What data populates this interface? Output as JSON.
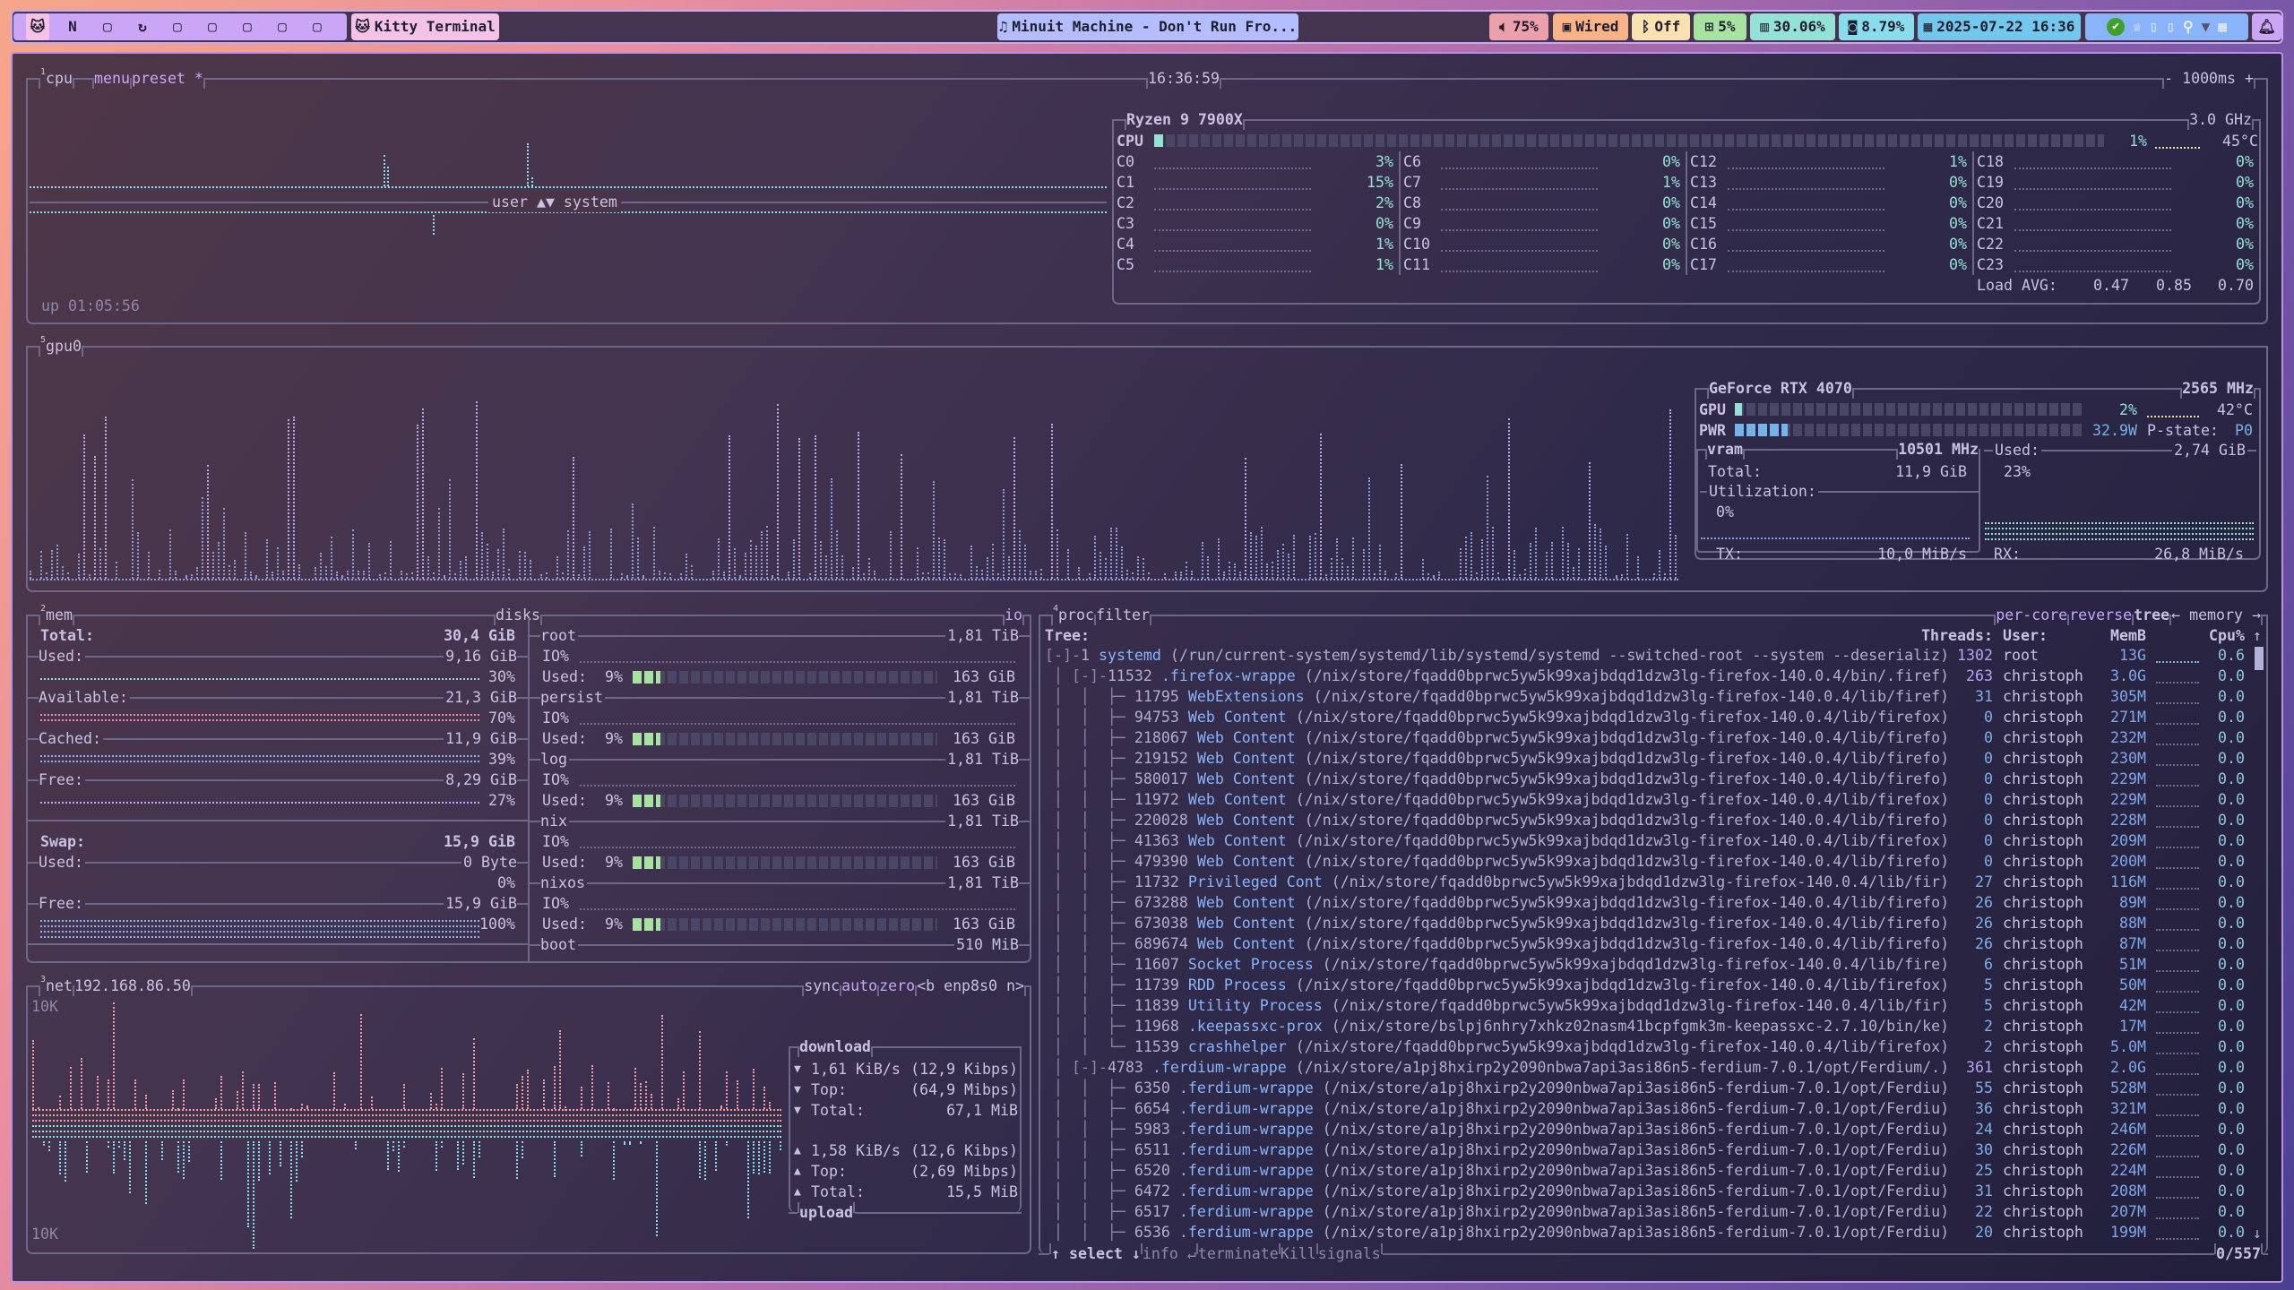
{
  "topbar": {
    "workspaces": [
      "cat-icon",
      "nixos-n-icon",
      "square-icon",
      "firefox-icon",
      "square-icon",
      "square-icon",
      "square-icon",
      "square-icon",
      "square-icon"
    ],
    "window_title": "Kitty Terminal",
    "media": "Minuit Machine - Don't Run Fro...",
    "volume": "75%",
    "network": "Wired",
    "bluetooth": "Off",
    "cpu": "5%",
    "memory": "30.06%",
    "disk": "8.79%",
    "datetime": "2025-07-22 16:36",
    "colors": {
      "workspaces": "#cba6f7",
      "window": "#f5c2e7",
      "media": "#b4befe",
      "volume": "#eba0ac",
      "network": "#fab387",
      "bluetooth": "#f9e2af",
      "cpu": "#a6e3a1",
      "memory": "#94e2d5",
      "disk": "#89dceb",
      "datetime": "#74c7ec",
      "tray": "#89b4fa",
      "bell": "#cba6f7"
    }
  },
  "cpu": {
    "num": "1",
    "title": "cpu",
    "menu": "menu",
    "preset": "preset *",
    "clock": "16:36:59",
    "interval": "- 1000ms +",
    "graph_label": "user ▲▼ system",
    "uptime": "up 01:05:56",
    "model": "Ryzen 9 7900X",
    "freq": "3.0 GHz",
    "total_label": "CPU",
    "total_pct": 1,
    "total_text": "1%",
    "temp": "45°C",
    "cores": [
      {
        "l": "C0",
        "v": "3%"
      },
      {
        "l": "C1",
        "v": "15%"
      },
      {
        "l": "C2",
        "v": "2%"
      },
      {
        "l": "C3",
        "v": "0%"
      },
      {
        "l": "C4",
        "v": "1%"
      },
      {
        "l": "C5",
        "v": "1%"
      },
      {
        "l": "C6",
        "v": "0%"
      },
      {
        "l": "C7",
        "v": "1%"
      },
      {
        "l": "C8",
        "v": "0%"
      },
      {
        "l": "C9",
        "v": "0%"
      },
      {
        "l": "C10",
        "v": "0%"
      },
      {
        "l": "C11",
        "v": "0%"
      },
      {
        "l": "C12",
        "v": "1%"
      },
      {
        "l": "C13",
        "v": "0%"
      },
      {
        "l": "C14",
        "v": "0%"
      },
      {
        "l": "C15",
        "v": "0%"
      },
      {
        "l": "C16",
        "v": "0%"
      },
      {
        "l": "C17",
        "v": "0%"
      },
      {
        "l": "C18",
        "v": "0%"
      },
      {
        "l": "C19",
        "v": "0%"
      },
      {
        "l": "C20",
        "v": "0%"
      },
      {
        "l": "C21",
        "v": "0%"
      },
      {
        "l": "C22",
        "v": "0%"
      },
      {
        "l": "C23",
        "v": "0%"
      }
    ],
    "load_label": "Load AVG:",
    "load": [
      "0.47",
      "0.85",
      "0.70"
    ]
  },
  "gpu": {
    "num": "5",
    "title": "gpu0",
    "model": "GeForce RTX 4070",
    "freq": "2565 MHz",
    "gpu_label": "GPU",
    "gpu_pct": 2,
    "gpu_text": "2%",
    "temp": "42°C",
    "pwr_label": "PWR",
    "pwr_pct": 15,
    "pwr_text": "32.9W",
    "pstate_label": "P-state:",
    "pstate": "P0",
    "vram_label": "vram",
    "vram_freq": "10501 MHz",
    "total_label": "Total:",
    "total": "11,9 GiB",
    "util_label": "Utilization:",
    "util": "0%",
    "used_label": "Used:",
    "used": "2,74 GiB",
    "used_pct": "23%",
    "tx_label": "TX:",
    "tx": "10,0 MiB/s",
    "rx_label": "RX:",
    "rx": "26,8 MiB/s"
  },
  "mem": {
    "num": "2",
    "title": "mem",
    "total_label": "Total:",
    "total": "30,4 GiB",
    "rows": [
      {
        "label": "Used:",
        "value": "9,16 GiB",
        "pct": "30%",
        "color": "#94e2d5"
      },
      {
        "label": "Available:",
        "value": "21,3 GiB",
        "pct": "70%",
        "color": "#f38ba8"
      },
      {
        "label": "Cached:",
        "value": "11,9 GiB",
        "pct": "39%",
        "color": "#89b4fa"
      },
      {
        "label": "Free:",
        "value": "8,29 GiB",
        "pct": "27%",
        "color": "#cba6f7"
      }
    ],
    "swap_label": "Swap:",
    "swap": "15,9 GiB",
    "swap_rows": [
      {
        "label": "Used:",
        "value": "0 Byte",
        "pct": "0%",
        "color": "#94e2d5"
      },
      {
        "label": "Free:",
        "value": "15,9 GiB",
        "pct": "100%",
        "color": "#89b4fa"
      }
    ]
  },
  "disks": {
    "title": "disks",
    "io": "io",
    "items": [
      {
        "name": "root",
        "size": "1,81 TiB",
        "io": "IO%",
        "used_label": "Used:",
        "pct": 9,
        "pct_text": "9%",
        "used": "163 GiB"
      },
      {
        "name": "persist",
        "size": "1,81 TiB",
        "io": "IO%",
        "used_label": "Used:",
        "pct": 9,
        "pct_text": "9%",
        "used": "163 GiB"
      },
      {
        "name": "log",
        "size": "1,81 TiB",
        "io": "IO%",
        "used_label": "Used:",
        "pct": 9,
        "pct_text": "9%",
        "used": "163 GiB"
      },
      {
        "name": "nix",
        "size": "1,81 TiB",
        "io": "IO%",
        "used_label": "Used:",
        "pct": 9,
        "pct_text": "9%",
        "used": "163 GiB"
      },
      {
        "name": "nixos",
        "size": "1,81 TiB",
        "io": "IO%",
        "used_label": "Used:",
        "pct": 9,
        "pct_text": "9%",
        "used": "163 GiB"
      }
    ],
    "boot": {
      "name": "boot",
      "size": "510 MiB"
    },
    "bar_color": "#a6e3a1"
  },
  "net": {
    "num": "3",
    "title": "net",
    "ip": "192.168.86.50",
    "sync": "sync",
    "auto": "auto",
    "zero": "zero",
    "iface": "<b enp8s0 n>",
    "scale_top": "10K",
    "scale_bottom": "10K",
    "download_title": "download",
    "upload_title": "upload",
    "download": [
      {
        "arrow": "▼",
        "label": "1,61 KiB/s",
        "value": "(12,9 Kibps)"
      },
      {
        "arrow": "▼",
        "label": "Top:",
        "value": "(64,9 Mibps)"
      },
      {
        "arrow": "▼",
        "label": "Total:",
        "value": "67,1 MiB"
      }
    ],
    "upload": [
      {
        "arrow": "▲",
        "label": "1,58 KiB/s",
        "value": "(12,6 Kibps)"
      },
      {
        "arrow": "▲",
        "label": "Top:",
        "value": "(2,69 Mibps)"
      },
      {
        "arrow": "▲",
        "label": "Total:",
        "value": "15,5 MiB"
      }
    ]
  },
  "proc": {
    "num": "4",
    "title": "proc",
    "filter": "filter",
    "per_core": "per-core",
    "reverse": "reverse",
    "tree": "tree",
    "sort": "← memory →",
    "headers": {
      "tree": "Tree:",
      "threads": "Threads:",
      "user": "User:",
      "mem": "MemB",
      "cpu": "Cpu%",
      "sort_dir": "↑"
    },
    "rows": [
      {
        "pre": "[-]-",
        "pid": "1",
        "name": "systemd",
        "args": "(/run/current-system/systemd/lib/systemd/systemd --switched-root --system --deserializ)",
        "thr": "1302",
        "user": "root",
        "mem": "13G",
        "cpu": "0.6"
      },
      {
        "pre": " │ [-]-",
        "pid": "11532",
        "name": ".firefox-wrappe",
        "args": "(/nix/store/fqadd0bprwc5yw5k99xajbdqd1dzw3lg-firefox-140.0.4/bin/.firef)",
        "thr": "263",
        "user": "christoph",
        "mem": "3.0G",
        "cpu": "0.0"
      },
      {
        "pre": " │  │  ├─ ",
        "pid": "11795",
        "name": "WebExtensions",
        "args": "(/nix/store/fqadd0bprwc5yw5k99xajbdqd1dzw3lg-firefox-140.0.4/lib/firef)",
        "thr": "31",
        "user": "christoph",
        "mem": "305M",
        "cpu": "0.0"
      },
      {
        "pre": " │  │  ├─ ",
        "pid": "94753",
        "name": "Web Content",
        "args": "(/nix/store/fqadd0bprwc5yw5k99xajbdqd1dzw3lg-firefox-140.0.4/lib/firefox)",
        "thr": "0",
        "user": "christoph",
        "mem": "271M",
        "cpu": "0.0"
      },
      {
        "pre": " │  │  ├─ ",
        "pid": "218067",
        "name": "Web Content",
        "args": "(/nix/store/fqadd0bprwc5yw5k99xajbdqd1dzw3lg-firefox-140.0.4/lib/firefo)",
        "thr": "0",
        "user": "christoph",
        "mem": "232M",
        "cpu": "0.0"
      },
      {
        "pre": " │  │  ├─ ",
        "pid": "219152",
        "name": "Web Content",
        "args": "(/nix/store/fqadd0bprwc5yw5k99xajbdqd1dzw3lg-firefox-140.0.4/lib/firefo)",
        "thr": "0",
        "user": "christoph",
        "mem": "230M",
        "cpu": "0.0"
      },
      {
        "pre": " │  │  ├─ ",
        "pid": "580017",
        "name": "Web Content",
        "args": "(/nix/store/fqadd0bprwc5yw5k99xajbdqd1dzw3lg-firefox-140.0.4/lib/firefo)",
        "thr": "0",
        "user": "christoph",
        "mem": "229M",
        "cpu": "0.0"
      },
      {
        "pre": " │  │  ├─ ",
        "pid": "11972",
        "name": "Web Content",
        "args": "(/nix/store/fqadd0bprwc5yw5k99xajbdqd1dzw3lg-firefox-140.0.4/lib/firefox)",
        "thr": "0",
        "user": "christoph",
        "mem": "229M",
        "cpu": "0.0"
      },
      {
        "pre": " │  │  ├─ ",
        "pid": "220028",
        "name": "Web Content",
        "args": "(/nix/store/fqadd0bprwc5yw5k99xajbdqd1dzw3lg-firefox-140.0.4/lib/firefo)",
        "thr": "0",
        "user": "christoph",
        "mem": "228M",
        "cpu": "0.0"
      },
      {
        "pre": " │  │  ├─ ",
        "pid": "41363",
        "name": "Web Content",
        "args": "(/nix/store/fqadd0bprwc5yw5k99xajbdqd1dzw3lg-firefox-140.0.4/lib/firefox)",
        "thr": "0",
        "user": "christoph",
        "mem": "209M",
        "cpu": "0.0"
      },
      {
        "pre": " │  │  ├─ ",
        "pid": "479390",
        "name": "Web Content",
        "args": "(/nix/store/fqadd0bprwc5yw5k99xajbdqd1dzw3lg-firefox-140.0.4/lib/firefo)",
        "thr": "0",
        "user": "christoph",
        "mem": "200M",
        "cpu": "0.0"
      },
      {
        "pre": " │  │  ├─ ",
        "pid": "11732",
        "name": "Privileged Cont",
        "args": "(/nix/store/fqadd0bprwc5yw5k99xajbdqd1dzw3lg-firefox-140.0.4/lib/fir)",
        "thr": "27",
        "user": "christoph",
        "mem": "116M",
        "cpu": "0.0"
      },
      {
        "pre": " │  │  ├─ ",
        "pid": "673288",
        "name": "Web Content",
        "args": "(/nix/store/fqadd0bprwc5yw5k99xajbdqd1dzw3lg-firefox-140.0.4/lib/firefo)",
        "thr": "26",
        "user": "christoph",
        "mem": "89M",
        "cpu": "0.0"
      },
      {
        "pre": " │  │  ├─ ",
        "pid": "673038",
        "name": "Web Content",
        "args": "(/nix/store/fqadd0bprwc5yw5k99xajbdqd1dzw3lg-firefox-140.0.4/lib/firefo)",
        "thr": "26",
        "user": "christoph",
        "mem": "88M",
        "cpu": "0.0"
      },
      {
        "pre": " │  │  ├─ ",
        "pid": "689674",
        "name": "Web Content",
        "args": "(/nix/store/fqadd0bprwc5yw5k99xajbdqd1dzw3lg-firefox-140.0.4/lib/firefo)",
        "thr": "26",
        "user": "christoph",
        "mem": "87M",
        "cpu": "0.0"
      },
      {
        "pre": " │  │  ├─ ",
        "pid": "11607",
        "name": "Socket Process",
        "args": "(/nix/store/fqadd0bprwc5yw5k99xajbdqd1dzw3lg-firefox-140.0.4/lib/fire)",
        "thr": "6",
        "user": "christoph",
        "mem": "51M",
        "cpu": "0.0"
      },
      {
        "pre": " │  │  ├─ ",
        "pid": "11739",
        "name": "RDD Process",
        "args": "(/nix/store/fqadd0bprwc5yw5k99xajbdqd1dzw3lg-firefox-140.0.4/lib/firefox)",
        "thr": "5",
        "user": "christoph",
        "mem": "50M",
        "cpu": "0.0"
      },
      {
        "pre": " │  │  ├─ ",
        "pid": "11839",
        "name": "Utility Process",
        "args": "(/nix/store/fqadd0bprwc5yw5k99xajbdqd1dzw3lg-firefox-140.0.4/lib/fir)",
        "thr": "5",
        "user": "christoph",
        "mem": "42M",
        "cpu": "0.0"
      },
      {
        "pre": " │  │  ├─ ",
        "pid": "11968",
        "name": ".keepassxc-prox",
        "args": "(/nix/store/bslpj6nhry7xhkz02nasm41bcpfgmk3m-keepassxc-2.7.10/bin/ke)",
        "thr": "2",
        "user": "christoph",
        "mem": "17M",
        "cpu": "0.0"
      },
      {
        "pre": " │  │  └─ ",
        "pid": "11539",
        "name": "crashhelper",
        "args": "(/nix/store/fqadd0bprwc5yw5k99xajbdqd1dzw3lg-firefox-140.0.4/lib/firefox)",
        "thr": "2",
        "user": "christoph",
        "mem": "5.0M",
        "cpu": "0.0"
      },
      {
        "pre": " │ [-]-",
        "pid": "4783",
        "name": ".ferdium-wrappe",
        "args": "(/nix/store/a1pj8hxirp2y2090nbwa7api3asi86n5-ferdium-7.0.1/opt/Ferdium/.)",
        "thr": "361",
        "user": "christoph",
        "mem": "2.0G",
        "cpu": "0.0"
      },
      {
        "pre": " │  │  ├─ ",
        "pid": "6350",
        "name": ".ferdium-wrappe",
        "args": "(/nix/store/a1pj8hxirp2y2090nbwa7api3asi86n5-ferdium-7.0.1/opt/Ferdiu)",
        "thr": "55",
        "user": "christoph",
        "mem": "528M",
        "cpu": "0.0"
      },
      {
        "pre": " │  │  ├─ ",
        "pid": "6654",
        "name": ".ferdium-wrappe",
        "args": "(/nix/store/a1pj8hxirp2y2090nbwa7api3asi86n5-ferdium-7.0.1/opt/Ferdiu)",
        "thr": "36",
        "user": "christoph",
        "mem": "321M",
        "cpu": "0.0"
      },
      {
        "pre": " │  │  ├─ ",
        "pid": "5983",
        "name": ".ferdium-wrappe",
        "args": "(/nix/store/a1pj8hxirp2y2090nbwa7api3asi86n5-ferdium-7.0.1/opt/Ferdiu)",
        "thr": "24",
        "user": "christoph",
        "mem": "246M",
        "cpu": "0.0"
      },
      {
        "pre": " │  │  ├─ ",
        "pid": "6511",
        "name": ".ferdium-wrappe",
        "args": "(/nix/store/a1pj8hxirp2y2090nbwa7api3asi86n5-ferdium-7.0.1/opt/Ferdiu)",
        "thr": "30",
        "user": "christoph",
        "mem": "226M",
        "cpu": "0.0"
      },
      {
        "pre": " │  │  ├─ ",
        "pid": "6520",
        "name": ".ferdium-wrappe",
        "args": "(/nix/store/a1pj8hxirp2y2090nbwa7api3asi86n5-ferdium-7.0.1/opt/Ferdiu)",
        "thr": "25",
        "user": "christoph",
        "mem": "224M",
        "cpu": "0.0"
      },
      {
        "pre": " │  │  ├─ ",
        "pid": "6472",
        "name": ".ferdium-wrappe",
        "args": "(/nix/store/a1pj8hxirp2y2090nbwa7api3asi86n5-ferdium-7.0.1/opt/Ferdiu)",
        "thr": "31",
        "user": "christoph",
        "mem": "208M",
        "cpu": "0.0"
      },
      {
        "pre": " │  │  ├─ ",
        "pid": "6517",
        "name": ".ferdium-wrappe",
        "args": "(/nix/store/a1pj8hxirp2y2090nbwa7api3asi86n5-ferdium-7.0.1/opt/Ferdiu)",
        "thr": "22",
        "user": "christoph",
        "mem": "207M",
        "cpu": "0.0"
      },
      {
        "pre": " │  │  ├─ ",
        "pid": "6536",
        "name": ".ferdium-wrappe",
        "args": "(/nix/store/a1pj8hxirp2y2090nbwa7api3asi86n5-ferdium-7.0.1/opt/Ferdiu)",
        "thr": "20",
        "user": "christoph",
        "mem": "199M",
        "cpu": "0.0"
      }
    ],
    "footer": {
      "select": "↑ select ↓",
      "info": "info ↵",
      "terminate": "terminate",
      "kill": "Kill",
      "signals": "signals",
      "count": "0/557"
    }
  }
}
